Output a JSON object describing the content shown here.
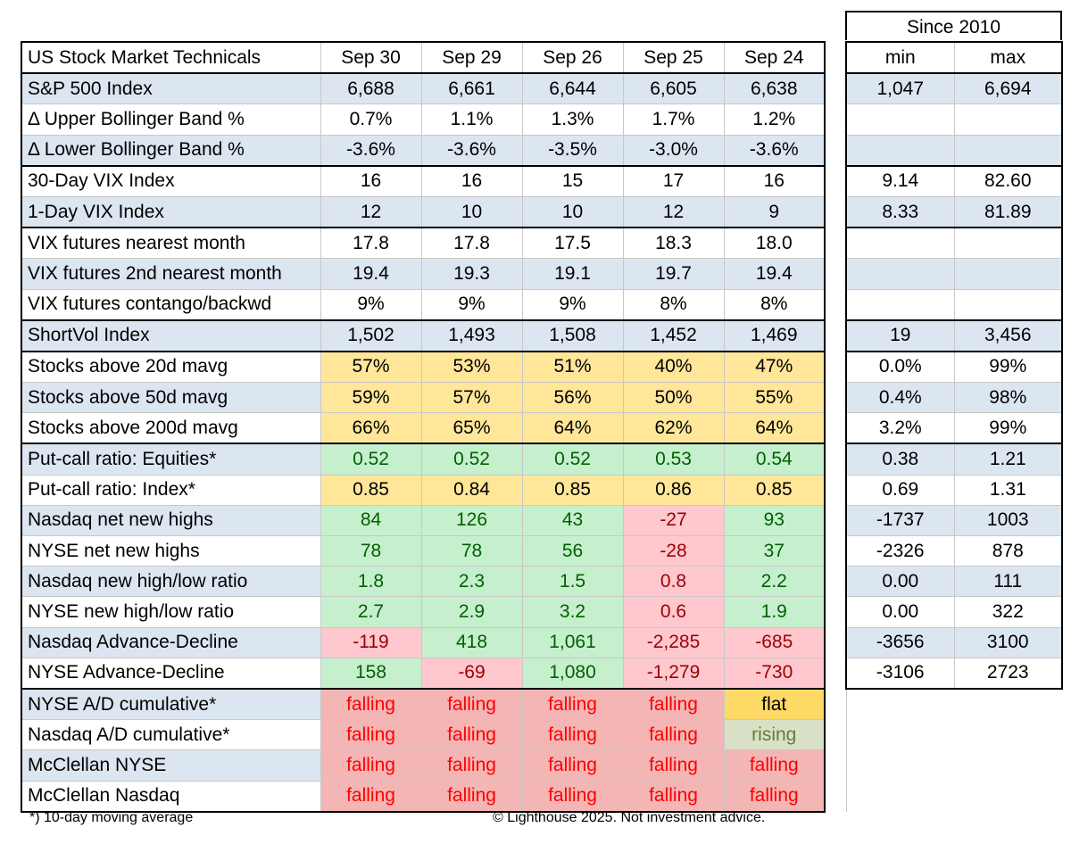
{
  "title": "US Stock Market Technicals",
  "since_label": "Since 2010",
  "dates": [
    "Sep 30",
    "Sep 29",
    "Sep 26",
    "Sep 25",
    "Sep 24"
  ],
  "range_headers": [
    "min",
    "max"
  ],
  "rows": [
    {
      "label": "S&P 500 Index",
      "values": [
        "6,688",
        "6,661",
        "6,644",
        "6,605",
        "6,638"
      ],
      "colors": [
        "",
        "",
        "",
        "",
        ""
      ],
      "min": "1,047",
      "max": "6,694"
    },
    {
      "label": "Δ  Upper Bollinger Band %",
      "values": [
        "0.7%",
        "1.1%",
        "1.3%",
        "1.7%",
        "1.2%"
      ],
      "colors": [
        "",
        "",
        "",
        "",
        ""
      ],
      "min": "",
      "max": ""
    },
    {
      "label": "Δ  Lower Bollinger Band %",
      "values": [
        "-3.6%",
        "-3.6%",
        "-3.5%",
        "-3.0%",
        "-3.6%"
      ],
      "colors": [
        "",
        "",
        "",
        "",
        ""
      ],
      "min": "",
      "max": ""
    },
    {
      "label": "30-Day VIX Index",
      "values": [
        "16",
        "16",
        "15",
        "17",
        "16"
      ],
      "colors": [
        "",
        "",
        "",
        "",
        ""
      ],
      "min": "9.14",
      "max": "82.60"
    },
    {
      "label": "1-Day VIX Index",
      "values": [
        "12",
        "10",
        "10",
        "12",
        "9"
      ],
      "colors": [
        "",
        "",
        "",
        "",
        ""
      ],
      "min": "8.33",
      "max": "81.89"
    },
    {
      "label": "VIX futures nearest month",
      "values": [
        "17.8",
        "17.8",
        "17.5",
        "18.3",
        "18.0"
      ],
      "colors": [
        "",
        "",
        "",
        "",
        ""
      ],
      "min": "",
      "max": ""
    },
    {
      "label": "VIX futures 2nd nearest month",
      "values": [
        "19.4",
        "19.3",
        "19.1",
        "19.7",
        "19.4"
      ],
      "colors": [
        "",
        "",
        "",
        "",
        ""
      ],
      "min": "",
      "max": ""
    },
    {
      "label": "VIX futures contango/backwd",
      "values": [
        "9%",
        "9%",
        "9%",
        "8%",
        "8%"
      ],
      "colors": [
        "",
        "",
        "",
        "",
        ""
      ],
      "min": "",
      "max": ""
    },
    {
      "label": "ShortVol Index",
      "values": [
        "1,502",
        "1,493",
        "1,508",
        "1,452",
        "1,469"
      ],
      "colors": [
        "",
        "",
        "",
        "",
        ""
      ],
      "min": "19",
      "max": "3,456"
    },
    {
      "label": "Stocks above 20d mavg",
      "values": [
        "57%",
        "53%",
        "51%",
        "40%",
        "47%"
      ],
      "colors": [
        "yellow",
        "yellow",
        "yellow",
        "yellow",
        "yellow"
      ],
      "min": "0.0%",
      "max": "99%"
    },
    {
      "label": "Stocks above 50d mavg",
      "values": [
        "59%",
        "57%",
        "56%",
        "50%",
        "55%"
      ],
      "colors": [
        "yellow",
        "yellow",
        "yellow",
        "yellow",
        "yellow"
      ],
      "min": "0.4%",
      "max": "98%"
    },
    {
      "label": "Stocks above 200d mavg",
      "values": [
        "66%",
        "65%",
        "64%",
        "62%",
        "64%"
      ],
      "colors": [
        "yellow",
        "yellow",
        "yellow",
        "yellow",
        "yellow"
      ],
      "min": "3.2%",
      "max": "99%"
    },
    {
      "label": "Put-call ratio: Equities*",
      "values": [
        "0.52",
        "0.52",
        "0.52",
        "0.53",
        "0.54"
      ],
      "colors": [
        "green",
        "green",
        "green",
        "green",
        "green"
      ],
      "min": "0.38",
      "max": "1.21"
    },
    {
      "label": "Put-call ratio: Index*",
      "values": [
        "0.85",
        "0.84",
        "0.85",
        "0.86",
        "0.85"
      ],
      "colors": [
        "yellow",
        "yellow",
        "yellow",
        "yellow",
        "yellow"
      ],
      "min": "0.69",
      "max": "1.31"
    },
    {
      "label": "Nasdaq net new highs",
      "values": [
        "84",
        "126",
        "43",
        "-27",
        "93"
      ],
      "colors": [
        "green",
        "green",
        "green",
        "red",
        "green"
      ],
      "min": "-1737",
      "max": "1003"
    },
    {
      "label": "NYSE net new highs",
      "values": [
        "78",
        "78",
        "56",
        "-28",
        "37"
      ],
      "colors": [
        "green",
        "green",
        "green",
        "red",
        "green"
      ],
      "min": "-2326",
      "max": "878"
    },
    {
      "label": "Nasdaq new high/low ratio",
      "values": [
        "1.8",
        "2.3",
        "1.5",
        "0.8",
        "2.2"
      ],
      "colors": [
        "green",
        "green",
        "green",
        "red",
        "green"
      ],
      "min": "0.00",
      "max": "111"
    },
    {
      "label": "NYSE new high/low ratio",
      "values": [
        "2.7",
        "2.9",
        "3.2",
        "0.6",
        "1.9"
      ],
      "colors": [
        "green",
        "green",
        "green",
        "red",
        "green"
      ],
      "min": "0.00",
      "max": "322"
    },
    {
      "label": "Nasdaq Advance-Decline",
      "values": [
        "-119",
        "418",
        "1,061",
        "-2,285",
        "-685"
      ],
      "colors": [
        "red",
        "green",
        "green",
        "red",
        "red"
      ],
      "min": "-3656",
      "max": "3100"
    },
    {
      "label": "NYSE Advance-Decline",
      "values": [
        "158",
        "-69",
        "1,080",
        "-1,279",
        "-730"
      ],
      "colors": [
        "green",
        "red",
        "green",
        "red",
        "red"
      ],
      "min": "-3106",
      "max": "2723"
    },
    {
      "label": "NYSE A/D cumulative*",
      "values": [
        "falling",
        "falling",
        "falling",
        "falling",
        "flat"
      ],
      "colors": [
        "redtxt",
        "redtxt",
        "redtxt",
        "redtxt",
        "flat"
      ],
      "min": null,
      "max": null
    },
    {
      "label": "Nasdaq A/D cumulative*",
      "values": [
        "falling",
        "falling",
        "falling",
        "falling",
        "rising"
      ],
      "colors": [
        "redtxt",
        "redtxt",
        "redtxt",
        "redtxt",
        "rising"
      ],
      "min": null,
      "max": null
    },
    {
      "label": "McClellan NYSE",
      "values": [
        "falling",
        "falling",
        "falling",
        "falling",
        "falling"
      ],
      "colors": [
        "redtxt",
        "redtxt",
        "redtxt",
        "redtxt",
        "redtxt"
      ],
      "min": null,
      "max": null
    },
    {
      "label": "McClellan Nasdaq",
      "values": [
        "falling",
        "falling",
        "falling",
        "falling",
        "falling"
      ],
      "colors": [
        "redtxt",
        "redtxt",
        "redtxt",
        "redtxt",
        "redtxt"
      ],
      "min": null,
      "max": null
    }
  ],
  "footnote": "*) 10-day moving average",
  "copyright": "© Lighthouse 2025. Not investment advice."
}
